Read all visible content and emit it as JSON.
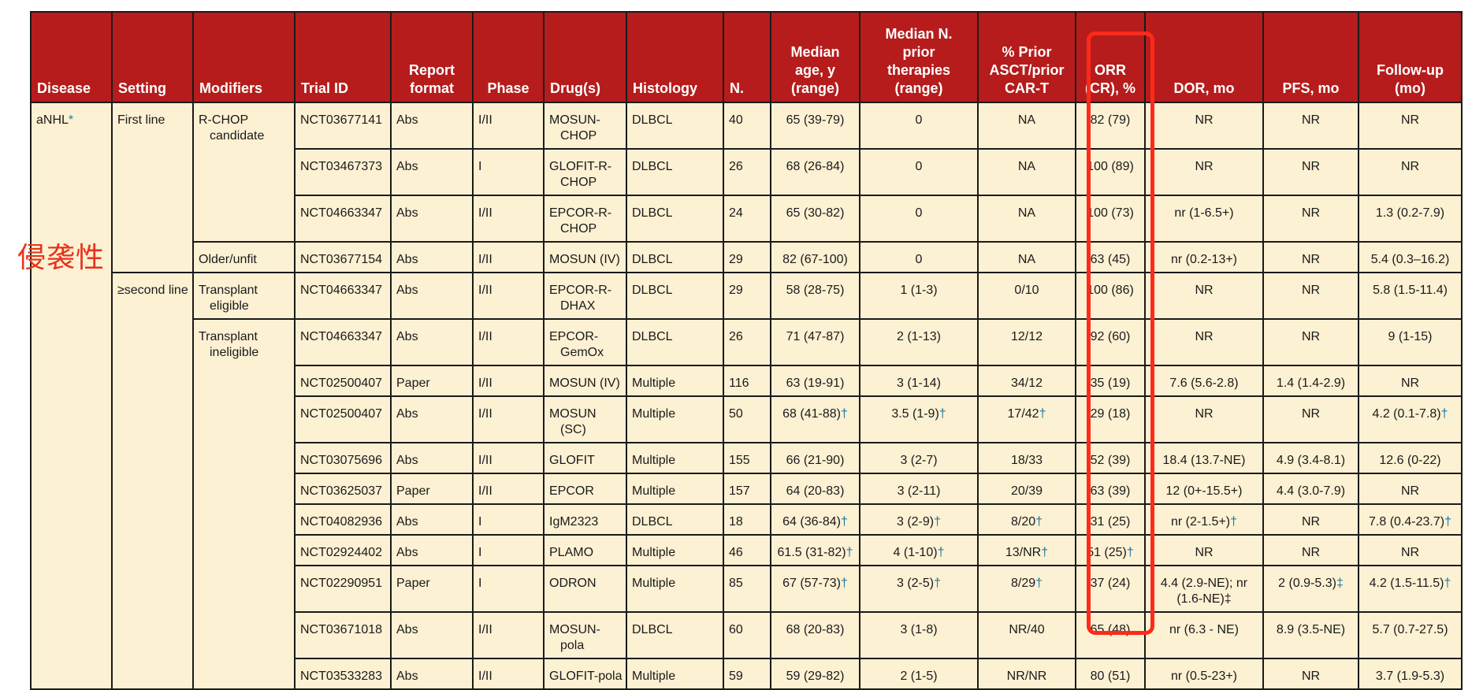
{
  "headers": [
    "Disease",
    "Setting",
    "Modifiers",
    "Trial ID",
    "Report format",
    "Phase",
    "Drug(s)",
    "Histology",
    "N.",
    "Median age, y (range)",
    "Median N. prior therapies (range)",
    "% Prior ASCT/prior CAR-T",
    "ORR (CR), %",
    "DOR, mo",
    "PFS, mo",
    "Follow-up (mo)"
  ],
  "header_lines": [
    [
      "Disease"
    ],
    [
      "Setting"
    ],
    [
      "Modifiers"
    ],
    [
      "Trial ID"
    ],
    [
      "Report",
      "format"
    ],
    [
      "Phase"
    ],
    [
      "Drug(s)"
    ],
    [
      "Histology"
    ],
    [
      "N."
    ],
    [
      "Median",
      "age, y",
      "(range)"
    ],
    [
      "Median N.",
      "prior",
      "therapies",
      "(range)"
    ],
    [
      "% Prior",
      "ASCT/prior",
      "CAR-T"
    ],
    [
      "ORR",
      "(CR), %"
    ],
    [
      "DOR, mo"
    ],
    [
      "PFS, mo"
    ],
    [
      "Follow-up",
      "(mo)"
    ]
  ],
  "disease": {
    "label": "aNHL",
    "mark": "*"
  },
  "settings": [
    "First line",
    "≥second line"
  ],
  "modifiers": [
    "R-CHOP candidate",
    "Older/unfit",
    "Transplant eligible",
    "Transplant ineligible"
  ],
  "annotation_text": "侵袭性",
  "rows": [
    {
      "trial": "NCT03677141",
      "format": "Abs",
      "phase": "I/II",
      "drug": "MOSUN-CHOP",
      "histology": "DLBCL",
      "n": "40",
      "age": "65 (39-79)",
      "age_m": "",
      "prior": "0",
      "prior_m": "",
      "asct": "NA",
      "asct_m": "",
      "orr": "82 (79)",
      "orr_m": "",
      "dor": "NR",
      "dor_m": "",
      "pfs": "NR",
      "pfs_m": "",
      "fu": "NR",
      "fu_m": ""
    },
    {
      "trial": "NCT03467373",
      "format": "Abs",
      "phase": "I",
      "drug": "GLOFIT-R-CHOP",
      "histology": "DLBCL",
      "n": "26",
      "age": "68 (26-84)",
      "age_m": "",
      "prior": "0",
      "prior_m": "",
      "asct": "NA",
      "asct_m": "",
      "orr": "100 (89)",
      "orr_m": "",
      "dor": "NR",
      "dor_m": "",
      "pfs": "NR",
      "pfs_m": "",
      "fu": "NR",
      "fu_m": ""
    },
    {
      "trial": "NCT04663347",
      "format": "Abs",
      "phase": "I/II",
      "drug": "EPCOR-R-CHOP",
      "histology": "DLBCL",
      "n": "24",
      "age": "65 (30-82)",
      "age_m": "",
      "prior": "0",
      "prior_m": "",
      "asct": "NA",
      "asct_m": "",
      "orr": "100 (73)",
      "orr_m": "",
      "dor": "nr (1-6.5+)",
      "dor_m": "",
      "pfs": "NR",
      "pfs_m": "",
      "fu": "1.3 (0.2-7.9)",
      "fu_m": ""
    },
    {
      "trial": "NCT03677154",
      "format": "Abs",
      "phase": "I/II",
      "drug": "MOSUN (IV)",
      "histology": "DLBCL",
      "n": "29",
      "age": "82 (67-100)",
      "age_m": "",
      "prior": "0",
      "prior_m": "",
      "asct": "NA",
      "asct_m": "",
      "orr": "63 (45)",
      "orr_m": "",
      "dor": "nr (0.2-13+)",
      "dor_m": "",
      "pfs": "NR",
      "pfs_m": "",
      "fu": "5.4 (0.3–16.2)",
      "fu_m": ""
    },
    {
      "trial": "NCT04663347",
      "format": "Abs",
      "phase": "I/II",
      "drug": "EPCOR-R-DHAX",
      "histology": "DLBCL",
      "n": "29",
      "age": "58 (28-75)",
      "age_m": "",
      "prior": "1 (1-3)",
      "prior_m": "",
      "asct": "0/10",
      "asct_m": "",
      "orr": "100 (86)",
      "orr_m": "",
      "dor": "NR",
      "dor_m": "",
      "pfs": "NR",
      "pfs_m": "",
      "fu": "5.8 (1.5-11.4)",
      "fu_m": ""
    },
    {
      "trial": "NCT04663347",
      "format": "Abs",
      "phase": "I/II",
      "drug": "EPCOR-GemOx",
      "histology": "DLBCL",
      "n": "26",
      "age": "71 (47-87)",
      "age_m": "",
      "prior": "2 (1-13)",
      "prior_m": "",
      "asct": "12/12",
      "asct_m": "",
      "orr": "92 (60)",
      "orr_m": "",
      "dor": "NR",
      "dor_m": "",
      "pfs": "NR",
      "pfs_m": "",
      "fu": "9 (1-15)",
      "fu_m": ""
    },
    {
      "trial": "NCT02500407",
      "format": "Paper",
      "phase": "I/II",
      "drug": "MOSUN (IV)",
      "histology": "Multiple",
      "n": "116",
      "age": "63 (19-91)",
      "age_m": "",
      "prior": "3 (1-14)",
      "prior_m": "",
      "asct": "34/12",
      "asct_m": "",
      "orr": "35 (19)",
      "orr_m": "",
      "dor": "7.6 (5.6-2.8)",
      "dor_m": "",
      "pfs": "1.4 (1.4-2.9)",
      "pfs_m": "",
      "fu": "NR",
      "fu_m": ""
    },
    {
      "trial": "NCT02500407",
      "format": "Abs",
      "phase": "I/II",
      "drug": "MOSUN (SC)",
      "histology": "Multiple",
      "n": "50",
      "age": "68 (41-88)",
      "age_m": "†",
      "prior": "3.5 (1-9)",
      "prior_m": "†",
      "asct": "17/42",
      "asct_m": "†",
      "orr": "29 (18)",
      "orr_m": "",
      "dor": "NR",
      "dor_m": "",
      "pfs": "NR",
      "pfs_m": "",
      "fu": "4.2 (0.1-7.8)",
      "fu_m": "†"
    },
    {
      "trial": "NCT03075696",
      "format": "Abs",
      "phase": "I/II",
      "drug": "GLOFIT",
      "histology": "Multiple",
      "n": "155",
      "age": "66 (21-90)",
      "age_m": "",
      "prior": "3 (2-7)",
      "prior_m": "",
      "asct": "18/33",
      "asct_m": "",
      "orr": "52 (39)",
      "orr_m": "",
      "dor": "18.4 (13.7-NE)",
      "dor_m": "",
      "pfs": "4.9 (3.4-8.1)",
      "pfs_m": "",
      "fu": "12.6 (0-22)",
      "fu_m": ""
    },
    {
      "trial": "NCT03625037",
      "format": "Paper",
      "phase": "I/II",
      "drug": "EPCOR",
      "histology": "Multiple",
      "n": "157",
      "age": "64 (20-83)",
      "age_m": "",
      "prior": "3 (2-11)",
      "prior_m": "",
      "asct": "20/39",
      "asct_m": "",
      "orr": "63 (39)",
      "orr_m": "",
      "dor": "12 (0+-15.5+)",
      "dor_m": "",
      "pfs": "4.4 (3.0-7.9)",
      "pfs_m": "",
      "fu": "NR",
      "fu_m": ""
    },
    {
      "trial": "NCT04082936",
      "format": "Abs",
      "phase": "I",
      "drug": "IgM2323",
      "histology": "DLBCL",
      "n": "18",
      "age": "64 (36-84)",
      "age_m": "†",
      "prior": "3 (2-9)",
      "prior_m": "†",
      "asct": "8/20",
      "asct_m": "†",
      "orr": "31 (25)",
      "orr_m": "",
      "dor": "nr (2-1.5+)",
      "dor_m": "†",
      "pfs": "NR",
      "pfs_m": "",
      "fu": "7.8 (0.4-23.7)",
      "fu_m": "†"
    },
    {
      "trial": "NCT02924402",
      "format": "Abs",
      "phase": "I",
      "drug": "PLAMO",
      "histology": "Multiple",
      "n": "46",
      "age": "61.5 (31-82)",
      "age_m": "†",
      "prior": "4 (1-10)",
      "prior_m": "†",
      "asct": "13/NR",
      "asct_m": "†",
      "orr": "51 (25)",
      "orr_m": "†",
      "dor": "NR",
      "dor_m": "",
      "pfs": "NR",
      "pfs_m": "",
      "fu": "NR",
      "fu_m": ""
    },
    {
      "trial": "NCT02290951",
      "format": "Paper",
      "phase": "I",
      "drug": "ODRON",
      "histology": "Multiple",
      "n": "85",
      "age": "67 (57-73)",
      "age_m": "†",
      "prior": "3 (2-5)",
      "prior_m": "†",
      "asct": "8/29",
      "asct_m": "†",
      "orr": "37 (24)",
      "orr_m": "",
      "dor": "4.4 (2.9-NE); nr (1.6-NE)‡",
      "dor_m": "",
      "pfs": "2 (0.9-5.3)",
      "pfs_m": "‡",
      "fu": "4.2 (1.5-11.5)",
      "fu_m": "†"
    },
    {
      "trial": "NCT03671018",
      "format": "Abs",
      "phase": "I/II",
      "drug": "MOSUN-pola",
      "histology": "DLBCL",
      "n": "60",
      "age": "68 (20-83)",
      "age_m": "",
      "prior": "3 (1-8)",
      "prior_m": "",
      "asct": "NR/40",
      "asct_m": "",
      "orr": "65 (48)",
      "orr_m": "",
      "dor": "nr (6.3 - NE)",
      "dor_m": "",
      "pfs": "8.9 (3.5-NE)",
      "pfs_m": "",
      "fu": "5.7 (0.7-27.5)",
      "fu_m": ""
    },
    {
      "trial": "NCT03533283",
      "format": "Abs",
      "phase": "I/II",
      "drug": "GLOFIT-pola",
      "histology": "Multiple",
      "n": "59",
      "age": "59 (29-82)",
      "age_m": "",
      "prior": "2 (1-5)",
      "prior_m": "",
      "asct": "NR/NR",
      "asct_m": "",
      "orr": "80 (51)",
      "orr_m": "",
      "dor": "nr (0.5-23+)",
      "dor_m": "",
      "pfs": "NR",
      "pfs_m": "",
      "fu": "3.7 (1.9-5.3)",
      "fu_m": ""
    }
  ],
  "colors": {
    "header_bg": "#b61c1c",
    "cell_bg": "#fdf1d3",
    "dagger": "#1a7aa8",
    "annotation": "#e8331c",
    "highlight": "#ff2a1a"
  }
}
